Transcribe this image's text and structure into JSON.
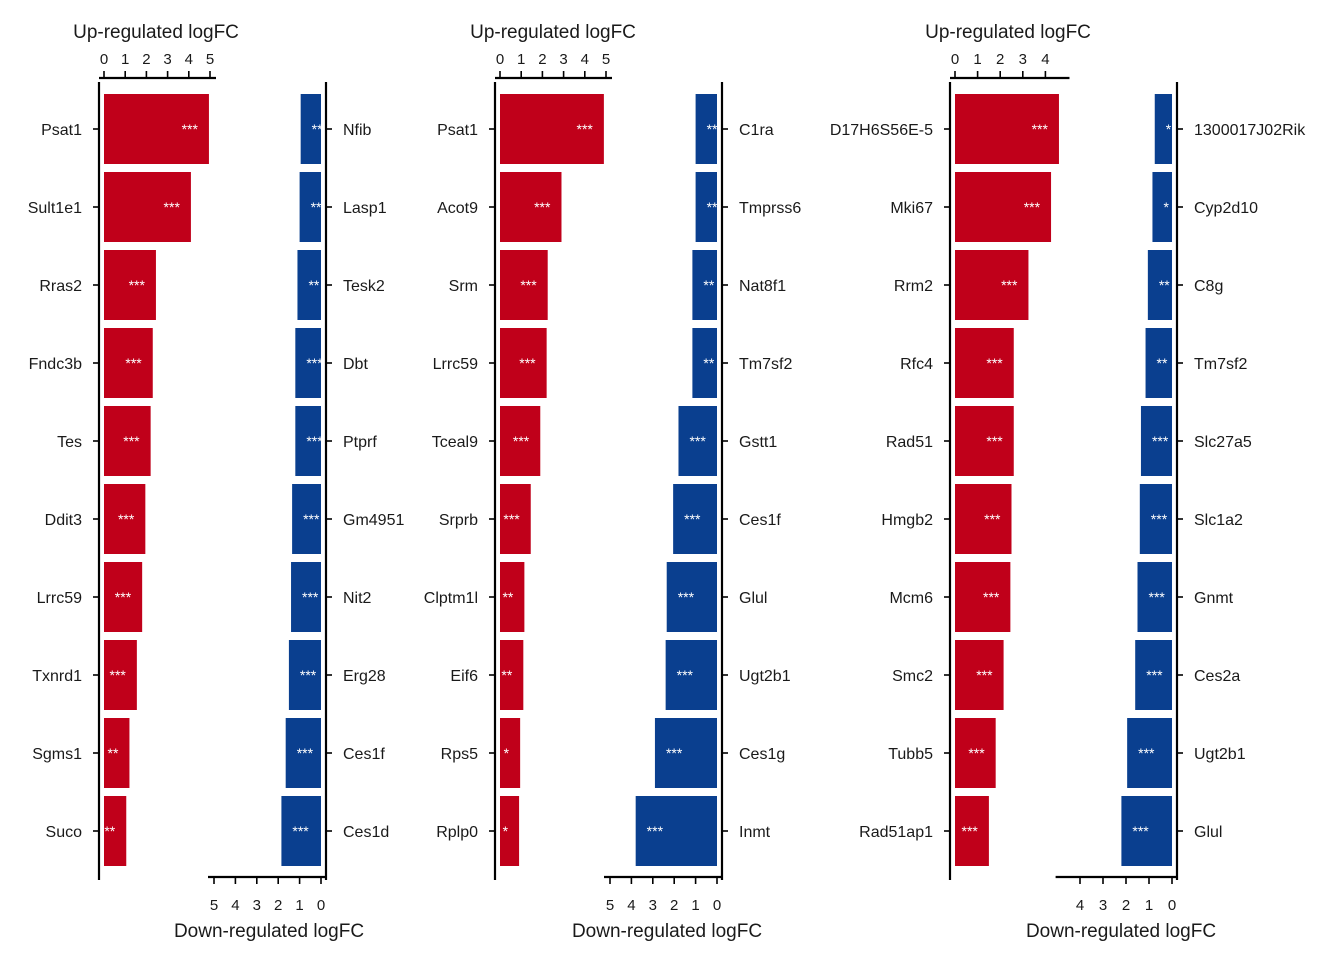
{
  "chart_data": [
    {
      "type": "bar",
      "up_label": "Up-regulated logFC",
      "down_label": "Down-regulated logFC",
      "up_ticks": [
        0,
        1,
        2,
        3,
        4,
        5
      ],
      "down_ticks": [
        5,
        4,
        3,
        2,
        1,
        0
      ],
      "up_max": 5,
      "down_max": 5,
      "colors": {
        "up": "#c0001a",
        "down": "#0a3f8f"
      },
      "up": [
        {
          "gene": "Psat1",
          "value": 4.95,
          "sig": "***"
        },
        {
          "gene": "Sult1e1",
          "value": 4.1,
          "sig": "***"
        },
        {
          "gene": "Rras2",
          "value": 2.45,
          "sig": "***"
        },
        {
          "gene": "Fndc3b",
          "value": 2.3,
          "sig": "***"
        },
        {
          "gene": "Tes",
          "value": 2.2,
          "sig": "***"
        },
        {
          "gene": "Ddit3",
          "value": 1.95,
          "sig": "***"
        },
        {
          "gene": "Lrrc59",
          "value": 1.8,
          "sig": "***"
        },
        {
          "gene": "Txnrd1",
          "value": 1.55,
          "sig": "***"
        },
        {
          "gene": "Sgms1",
          "value": 1.2,
          "sig": "**"
        },
        {
          "gene": "Suco",
          "value": 1.05,
          "sig": "**"
        }
      ],
      "down": [
        {
          "gene": "Nfib",
          "value": 0.95,
          "sig": "**"
        },
        {
          "gene": "Lasp1",
          "value": 1.0,
          "sig": "**"
        },
        {
          "gene": "Tesk2",
          "value": 1.1,
          "sig": "**"
        },
        {
          "gene": "Dbt",
          "value": 1.2,
          "sig": "***"
        },
        {
          "gene": "Ptprf",
          "value": 1.2,
          "sig": "***"
        },
        {
          "gene": "Gm4951",
          "value": 1.35,
          "sig": "***"
        },
        {
          "gene": "Nit2",
          "value": 1.4,
          "sig": "***"
        },
        {
          "gene": "Erg28",
          "value": 1.5,
          "sig": "***"
        },
        {
          "gene": "Ces1f",
          "value": 1.65,
          "sig": "***"
        },
        {
          "gene": "Ces1d",
          "value": 1.85,
          "sig": "***"
        }
      ]
    },
    {
      "type": "bar",
      "up_label": "Up-regulated logFC",
      "down_label": "Down-regulated logFC",
      "up_ticks": [
        0,
        1,
        2,
        3,
        4,
        5
      ],
      "down_ticks": [
        5,
        4,
        3,
        2,
        1,
        0
      ],
      "up_max": 5,
      "down_max": 5,
      "colors": {
        "up": "#c0001a",
        "down": "#0a3f8f"
      },
      "up": [
        {
          "gene": "Psat1",
          "value": 4.9,
          "sig": "***"
        },
        {
          "gene": "Acot9",
          "value": 2.9,
          "sig": "***"
        },
        {
          "gene": "Srm",
          "value": 2.25,
          "sig": "***"
        },
        {
          "gene": "Lrrc59",
          "value": 2.2,
          "sig": "***"
        },
        {
          "gene": "Tceal9",
          "value": 1.9,
          "sig": "***"
        },
        {
          "gene": "Srprb",
          "value": 1.45,
          "sig": "***"
        },
        {
          "gene": "Clptm1l",
          "value": 1.15,
          "sig": "**"
        },
        {
          "gene": "Eif6",
          "value": 1.1,
          "sig": "**"
        },
        {
          "gene": "Rps5",
          "value": 0.95,
          "sig": "*"
        },
        {
          "gene": "Rplp0",
          "value": 0.9,
          "sig": "*"
        }
      ],
      "down": [
        {
          "gene": "C1ra",
          "value": 1.0,
          "sig": "**"
        },
        {
          "gene": "Tmprss6",
          "value": 1.0,
          "sig": "**"
        },
        {
          "gene": "Nat8f1",
          "value": 1.15,
          "sig": "**"
        },
        {
          "gene": "Tm7sf2",
          "value": 1.15,
          "sig": "**"
        },
        {
          "gene": "Gstt1",
          "value": 1.8,
          "sig": "***"
        },
        {
          "gene": "Ces1f",
          "value": 2.05,
          "sig": "***"
        },
        {
          "gene": "Glul",
          "value": 2.35,
          "sig": "***"
        },
        {
          "gene": "Ugt2b1",
          "value": 2.4,
          "sig": "***"
        },
        {
          "gene": "Ces1g",
          "value": 2.9,
          "sig": "***"
        },
        {
          "gene": "Inmt",
          "value": 3.8,
          "sig": "***"
        }
      ]
    },
    {
      "type": "bar",
      "up_label": "Up-regulated logFC",
      "down_label": "Down-regulated logFC",
      "up_ticks": [
        0,
        1,
        2,
        3,
        4
      ],
      "down_ticks": [
        4,
        3,
        2,
        1,
        0
      ],
      "up_max": 4.8,
      "down_max": 4.8,
      "colors": {
        "up": "#c0001a",
        "down": "#0a3f8f"
      },
      "up": [
        {
          "gene": "D17H6S56E-5",
          "value": 4.6,
          "sig": "***"
        },
        {
          "gene": "Mki67",
          "value": 4.25,
          "sig": "***"
        },
        {
          "gene": "Rrm2",
          "value": 3.25,
          "sig": "***"
        },
        {
          "gene": "Rfc4",
          "value": 2.6,
          "sig": "***"
        },
        {
          "gene": "Rad51",
          "value": 2.6,
          "sig": "***"
        },
        {
          "gene": "Hmgb2",
          "value": 2.5,
          "sig": "***"
        },
        {
          "gene": "Mcm6",
          "value": 2.45,
          "sig": "***"
        },
        {
          "gene": "Smc2",
          "value": 2.15,
          "sig": "***"
        },
        {
          "gene": "Tubb5",
          "value": 1.8,
          "sig": "***"
        },
        {
          "gene": "Rad51ap1",
          "value": 1.5,
          "sig": "***"
        }
      ],
      "down": [
        {
          "gene": "1300017J02Rik",
          "value": 0.75,
          "sig": "*"
        },
        {
          "gene": "Cyp2d10",
          "value": 0.85,
          "sig": "*"
        },
        {
          "gene": "C8g",
          "value": 1.05,
          "sig": "**"
        },
        {
          "gene": "Tm7sf2",
          "value": 1.15,
          "sig": "**"
        },
        {
          "gene": "Slc27a5",
          "value": 1.35,
          "sig": "***"
        },
        {
          "gene": "Slc1a2",
          "value": 1.4,
          "sig": "***"
        },
        {
          "gene": "Gnmt",
          "value": 1.5,
          "sig": "***"
        },
        {
          "gene": "Ces2a",
          "value": 1.6,
          "sig": "***"
        },
        {
          "gene": "Ugt2b1",
          "value": 1.95,
          "sig": "***"
        },
        {
          "gene": "Glul",
          "value": 2.2,
          "sig": "***"
        }
      ]
    }
  ]
}
